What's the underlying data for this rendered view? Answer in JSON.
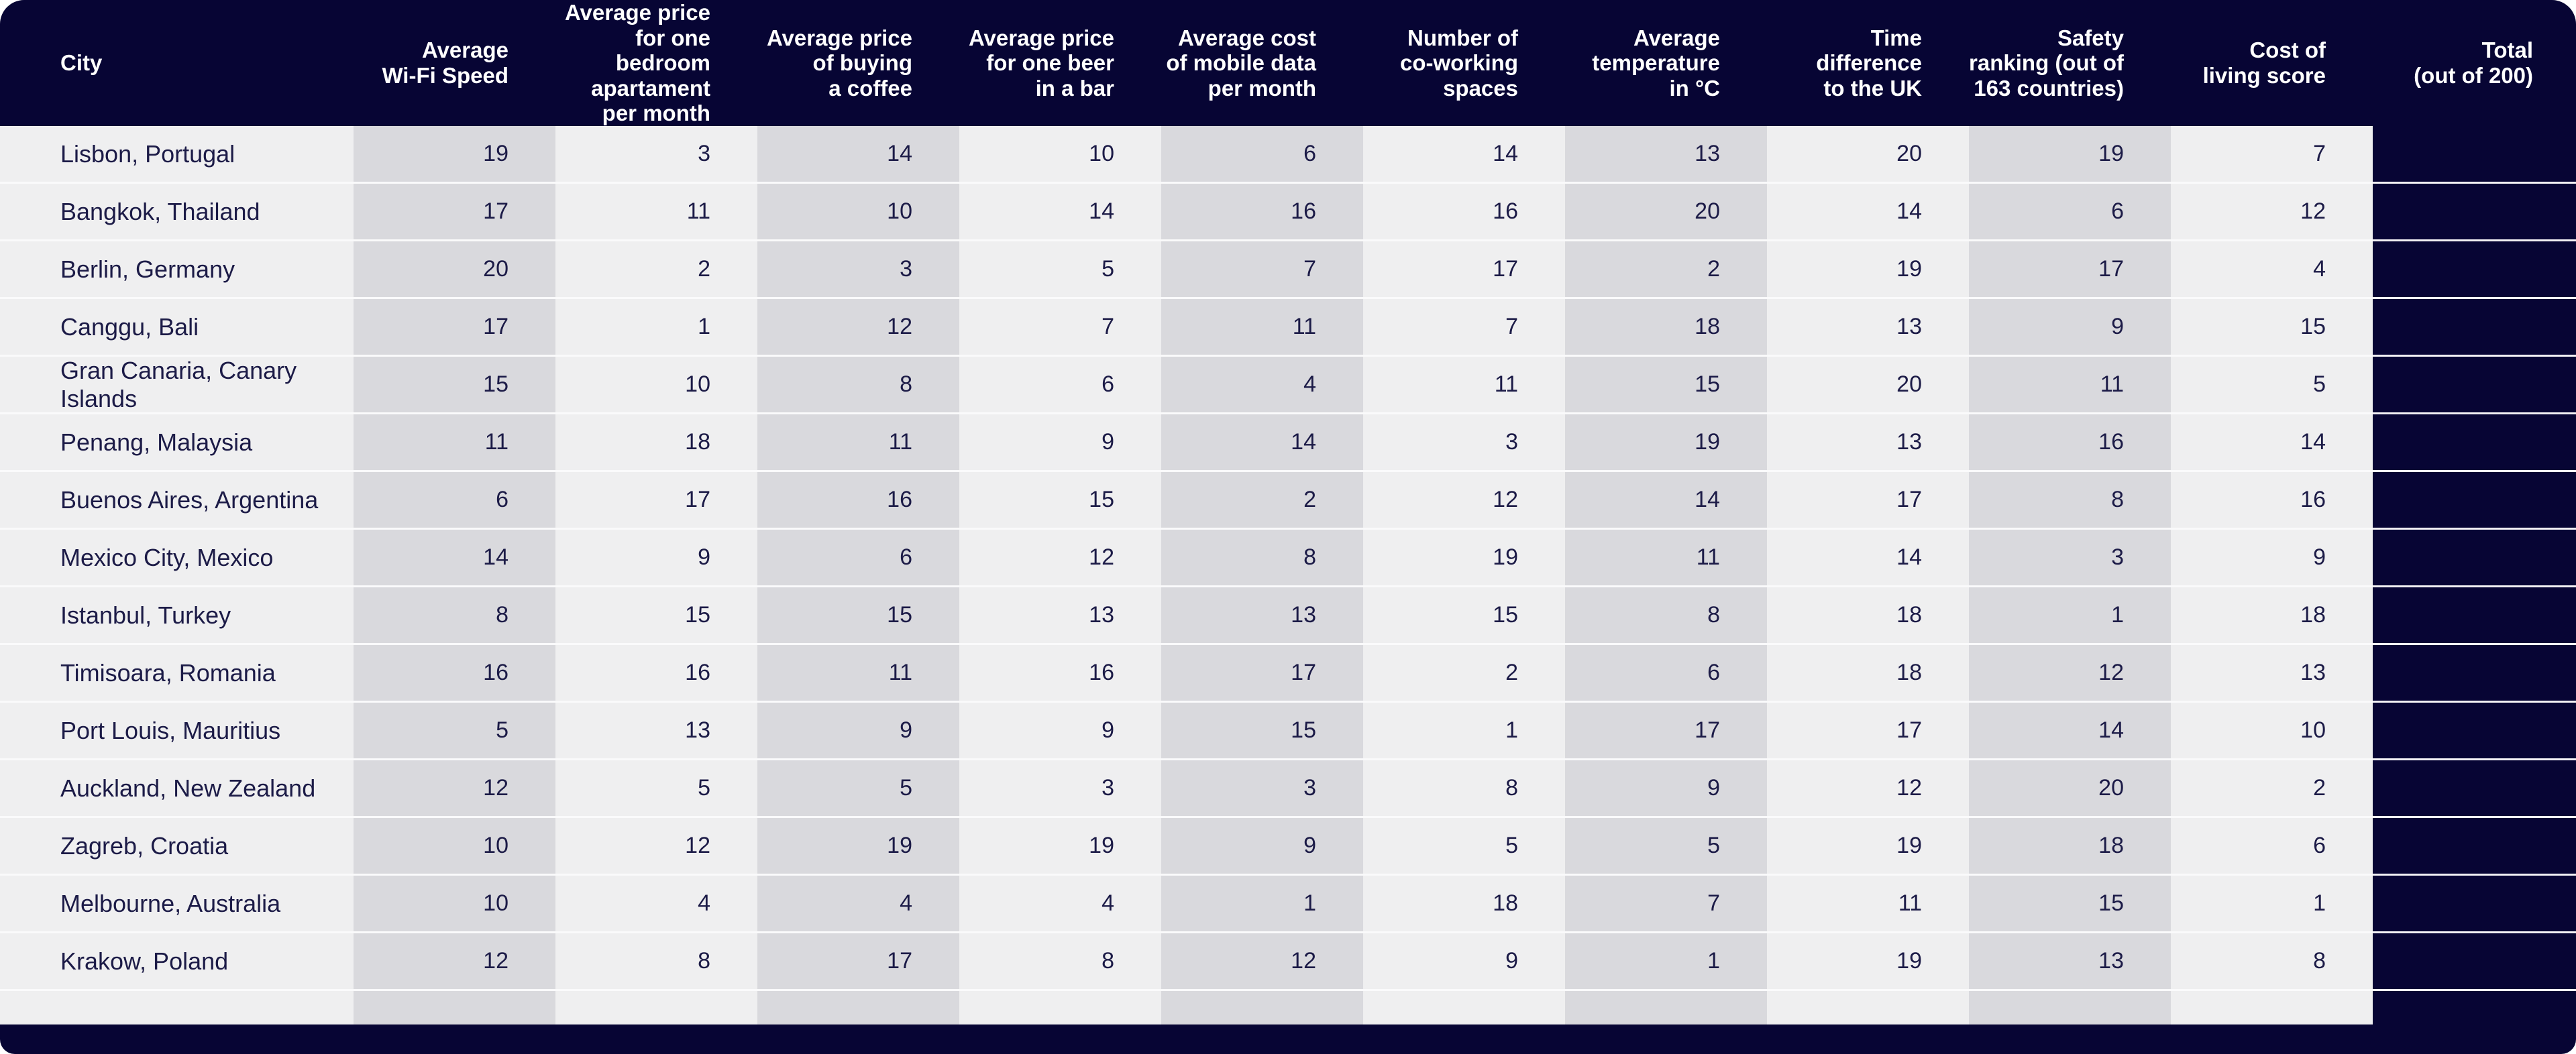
{
  "chart_data": {
    "type": "table",
    "columns": [
      {
        "id": "city",
        "label": "City"
      },
      {
        "id": "wifi",
        "label": "Average\nWi-Fi Speed"
      },
      {
        "id": "apartment",
        "label": "Average price\nfor one bedroom\napartament\nper month"
      },
      {
        "id": "coffee",
        "label": "Average price\nof buying\na coffee"
      },
      {
        "id": "beer",
        "label": "Average price\nfor one beer\nin a bar"
      },
      {
        "id": "mobile-data",
        "label": "Average cost\nof mobile data\nper month"
      },
      {
        "id": "coworking",
        "label": "Number of\nco-working\nspaces"
      },
      {
        "id": "temperature",
        "label": "Average\ntemperature\nin °C"
      },
      {
        "id": "time-difference",
        "label": "Time\ndifference\nto the UK"
      },
      {
        "id": "safety",
        "label": "Safety\nranking (out of\n163 countries)"
      },
      {
        "id": "cost-of-living",
        "label": "Cost of\nliving score"
      },
      {
        "id": "total",
        "label": "Total\n(out of 200)"
      }
    ],
    "rows": [
      {
        "city": "Lisbon, Portugal",
        "values": [
          19,
          3,
          14,
          10,
          6,
          14,
          13,
          20,
          19,
          7
        ],
        "total": ""
      },
      {
        "city": "Bangkok, Thailand",
        "values": [
          17,
          11,
          10,
          14,
          16,
          16,
          20,
          14,
          6,
          12
        ],
        "total": ""
      },
      {
        "city": "Berlin, Germany",
        "values": [
          20,
          2,
          3,
          5,
          7,
          17,
          2,
          19,
          17,
          4
        ],
        "total": ""
      },
      {
        "city": "Canggu, Bali",
        "values": [
          17,
          1,
          12,
          7,
          11,
          7,
          18,
          13,
          9,
          15
        ],
        "total": ""
      },
      {
        "city": "Gran Canaria, Canary Islands",
        "values": [
          15,
          10,
          8,
          6,
          4,
          11,
          15,
          20,
          11,
          5
        ],
        "total": ""
      },
      {
        "city": "Penang, Malaysia",
        "values": [
          11,
          18,
          11,
          9,
          14,
          3,
          19,
          13,
          16,
          14
        ],
        "total": ""
      },
      {
        "city": "Buenos Aires, Argentina",
        "values": [
          6,
          17,
          16,
          15,
          2,
          12,
          14,
          17,
          8,
          16
        ],
        "total": ""
      },
      {
        "city": "Mexico City, Mexico",
        "values": [
          14,
          9,
          6,
          12,
          8,
          19,
          11,
          14,
          3,
          9
        ],
        "total": ""
      },
      {
        "city": "Istanbul, Turkey",
        "values": [
          8,
          15,
          15,
          13,
          13,
          15,
          8,
          18,
          1,
          18
        ],
        "total": ""
      },
      {
        "city": "Timisoara, Romania",
        "values": [
          16,
          16,
          11,
          16,
          17,
          2,
          6,
          18,
          12,
          13
        ],
        "total": ""
      },
      {
        "city": "Port Louis, Mauritius",
        "values": [
          5,
          13,
          9,
          9,
          15,
          1,
          17,
          17,
          14,
          10
        ],
        "total": ""
      },
      {
        "city": "Auckland, New Zealand",
        "values": [
          12,
          5,
          5,
          3,
          3,
          8,
          9,
          12,
          20,
          2
        ],
        "total": ""
      },
      {
        "city": "Zagreb, Croatia",
        "values": [
          10,
          12,
          19,
          19,
          9,
          5,
          5,
          19,
          18,
          6
        ],
        "total": ""
      },
      {
        "city": "Melbourne, Australia",
        "values": [
          10,
          4,
          4,
          4,
          1,
          18,
          7,
          11,
          15,
          1
        ],
        "total": ""
      },
      {
        "city": "Krakow, Poland",
        "values": [
          12,
          8,
          17,
          8,
          12,
          9,
          1,
          19,
          13,
          8
        ],
        "total": ""
      }
    ]
  },
  "colors": {
    "navy": "#070534",
    "row_light": "#efeff0",
    "column_band": "#d9d9dd",
    "text_ink": "#1c1b47",
    "header_text": "#ffffff",
    "row_separator": "#fafafb",
    "total_separator": "#f2f1f4",
    "page_background": "#ffffff"
  }
}
